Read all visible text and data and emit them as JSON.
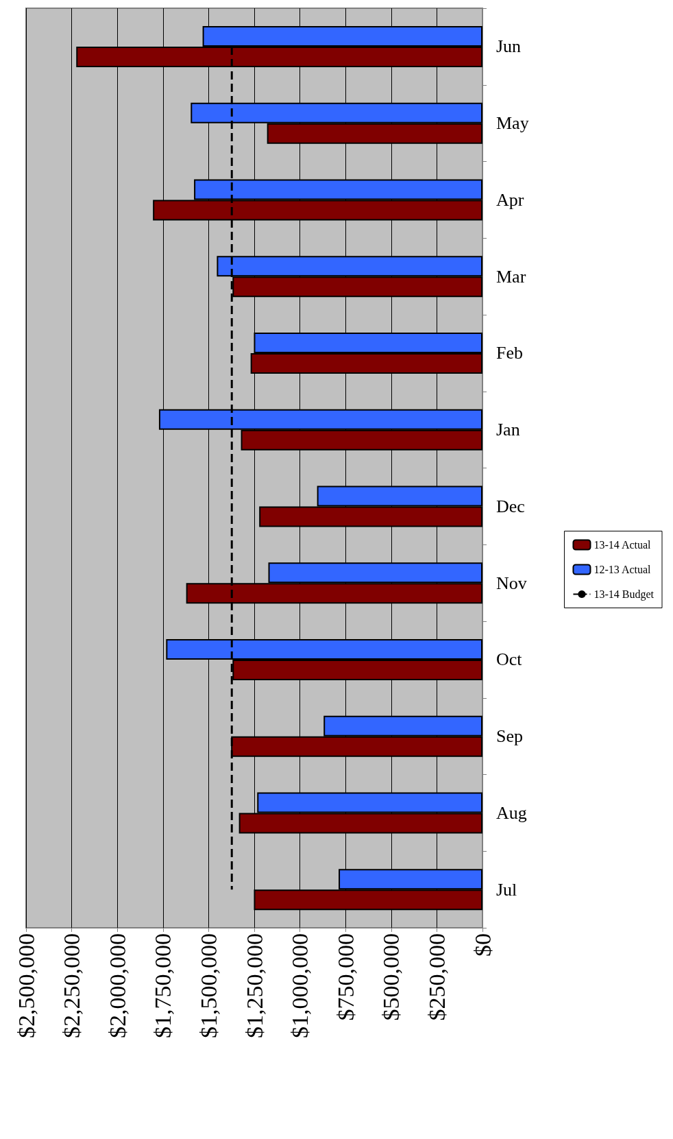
{
  "chart_data": {
    "type": "bar",
    "orientation": "horizontal",
    "categories": [
      "Jun",
      "May",
      "Apr",
      "Mar",
      "Feb",
      "Jan",
      "Dec",
      "Nov",
      "Oct",
      "Sep",
      "Aug",
      "Jul"
    ],
    "series": [
      {
        "name": "13-14 Actual",
        "color": "#800000",
        "values": [
          2225000,
          1180000,
          1805000,
          1369000,
          1270000,
          1323000,
          1223000,
          1623000,
          1369000,
          1377000,
          1334000,
          1252000
        ]
      },
      {
        "name": "12-13 Actual",
        "color": "#3366ff",
        "values": [
          1533000,
          1598000,
          1580000,
          1455000,
          1252000,
          1772000,
          906000,
          1173000,
          1733000,
          870000,
          1234000,
          788000
        ]
      },
      {
        "name": "13-14 Budget",
        "type": "line",
        "color": "#000000",
        "line_style": "dashed",
        "marker": "none",
        "values": [
          1373000,
          1373000,
          1373000,
          1373000,
          1373000,
          1373000,
          1373000,
          1373000,
          1373000,
          1373000,
          1373000,
          1373000
        ]
      }
    ],
    "xlim": [
      2500000,
      0
    ],
    "xticks": [
      {
        "value": 0,
        "label": "$0"
      },
      {
        "value": 250000,
        "label": "$250,000"
      },
      {
        "value": 500000,
        "label": "$500,000"
      },
      {
        "value": 750000,
        "label": "$750,000"
      },
      {
        "value": 1000000,
        "label": "$1,000,000"
      },
      {
        "value": 1250000,
        "label": "$1,250,000"
      },
      {
        "value": 1500000,
        "label": "$1,500,000"
      },
      {
        "value": 1750000,
        "label": "$1,750,000"
      },
      {
        "value": 2000000,
        "label": "$2,000,000"
      },
      {
        "value": 2250000,
        "label": "$2,250,000"
      },
      {
        "value": 2500000,
        "label": "$2,500,000"
      }
    ],
    "grid": "x",
    "legend": "right"
  }
}
